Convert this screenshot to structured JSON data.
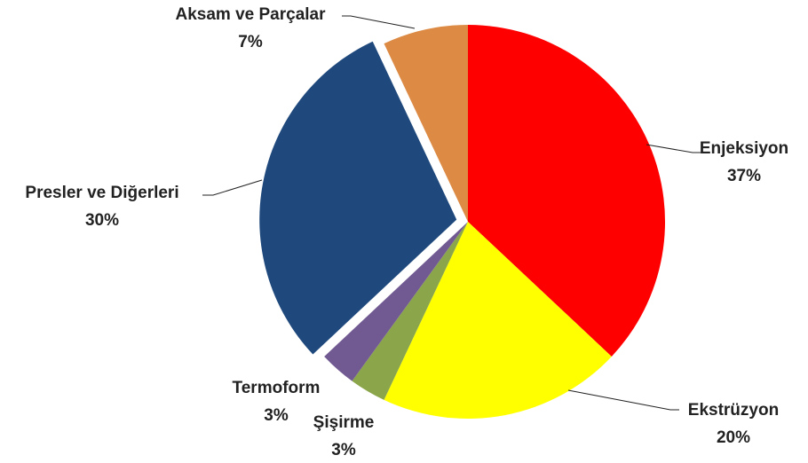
{
  "chart_data": {
    "type": "pie",
    "categories": [
      "Enjeksiyon",
      "Ekstrüzyon",
      "Şişirme",
      "Termoform",
      "Presler ve Diğerleri",
      "Aksam ve Parçalar"
    ],
    "values": [
      37,
      20,
      3,
      3,
      30,
      7
    ],
    "value_labels": [
      "37%",
      "20%",
      "3%",
      "3%",
      "30%",
      "7%"
    ],
    "colors": [
      "#ff0000",
      "#ffff00",
      "#8aa54a",
      "#715a92",
      "#1f497d",
      "#dc8a44"
    ],
    "exploded": [
      4
    ]
  }
}
